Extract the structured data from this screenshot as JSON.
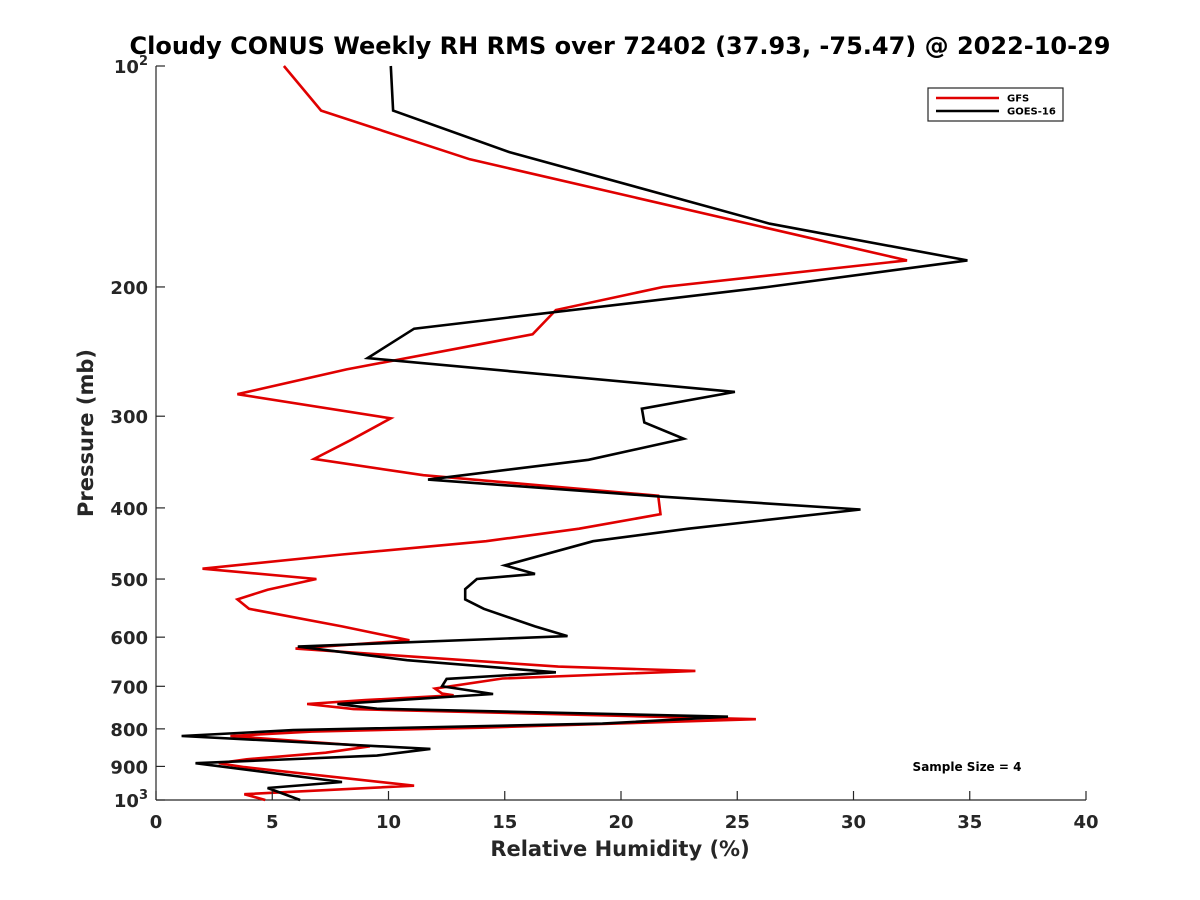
{
  "chart_data": {
    "type": "line",
    "title": "Cloudy CONUS Weekly RH RMS over 72402 (37.93, -75.47) @ 2022-10-29",
    "xlabel": "Relative Humidity (%)",
    "ylabel": "Pressure (mb)",
    "xlim": [
      0,
      40
    ],
    "ylim": [
      100,
      1000
    ],
    "yscale": "log",
    "y_reversed": true,
    "grid": false,
    "legend_position": "top-right",
    "x_ticks": [
      "0",
      "5",
      "10",
      "15",
      "20",
      "25",
      "30",
      "35",
      "40"
    ],
    "y_ticks": [
      {
        "value": 100,
        "label": "10",
        "exp": "2"
      },
      {
        "value": 200,
        "label": "200",
        "exp": ""
      },
      {
        "value": 300,
        "label": "300",
        "exp": ""
      },
      {
        "value": 400,
        "label": "400",
        "exp": ""
      },
      {
        "value": 500,
        "label": "500",
        "exp": ""
      },
      {
        "value": 600,
        "label": "600",
        "exp": ""
      },
      {
        "value": 700,
        "label": "700",
        "exp": ""
      },
      {
        "value": 800,
        "label": "800",
        "exp": ""
      },
      {
        "value": 900,
        "label": "900",
        "exp": ""
      },
      {
        "value": 1000,
        "label": "10",
        "exp": "3"
      }
    ],
    "annotation": "Sample Size = 4",
    "series": [
      {
        "name": "GFS",
        "color": "#e00000",
        "points": [
          [
            5.5,
            100
          ],
          [
            7.1,
            115
          ],
          [
            13.5,
            134
          ],
          [
            32.3,
            184
          ],
          [
            21.8,
            200
          ],
          [
            17.2,
            215
          ],
          [
            16.2,
            232
          ],
          [
            8.2,
            259
          ],
          [
            3.5,
            280
          ],
          [
            10.1,
            302
          ],
          [
            8.4,
            323
          ],
          [
            6.8,
            343
          ],
          [
            11.5,
            361
          ],
          [
            21.6,
            385
          ],
          [
            21.7,
            408
          ],
          [
            18.2,
            427
          ],
          [
            14.2,
            444
          ],
          [
            8.0,
            463
          ],
          [
            2.0,
            484
          ],
          [
            6.9,
            500
          ],
          [
            4.8,
            517
          ],
          [
            3.5,
            533
          ],
          [
            4.0,
            549
          ],
          [
            8.0,
            580
          ],
          [
            10.9,
            606
          ],
          [
            6.0,
            622
          ],
          [
            17.3,
            658
          ],
          [
            23.2,
            667
          ],
          [
            14.9,
            683
          ],
          [
            12.0,
            705
          ],
          [
            12.3,
            716
          ],
          [
            12.8,
            720
          ],
          [
            9.0,
            731
          ],
          [
            6.5,
            740
          ],
          [
            8.5,
            752
          ],
          [
            25.8,
            776
          ],
          [
            14.0,
            797
          ],
          [
            6.7,
            807
          ],
          [
            3.2,
            818
          ],
          [
            9.2,
            845
          ],
          [
            7.3,
            862
          ],
          [
            3.9,
            880
          ],
          [
            2.7,
            891
          ],
          [
            3.8,
            902
          ],
          [
            11.1,
            956
          ],
          [
            3.8,
            982
          ],
          [
            4.7,
            1000
          ]
        ]
      },
      {
        "name": "GOES-16",
        "color": "#000000",
        "points": [
          [
            10.1,
            100
          ],
          [
            10.2,
            115
          ],
          [
            15.2,
            131
          ],
          [
            26.4,
            164
          ],
          [
            34.9,
            184
          ],
          [
            26.3,
            200
          ],
          [
            11.1,
            228
          ],
          [
            9.1,
            250
          ],
          [
            24.9,
            278
          ],
          [
            20.9,
            293
          ],
          [
            21.0,
            306
          ],
          [
            22.7,
            322
          ],
          [
            18.6,
            344
          ],
          [
            11.7,
            366
          ],
          [
            21.7,
            386
          ],
          [
            30.3,
            402
          ],
          [
            22.9,
            427
          ],
          [
            18.8,
            444
          ],
          [
            15.0,
            479
          ],
          [
            16.3,
            492
          ],
          [
            13.8,
            500
          ],
          [
            13.3,
            516
          ],
          [
            13.3,
            533
          ],
          [
            14.1,
            549
          ],
          [
            16.3,
            580
          ],
          [
            17.7,
            598
          ],
          [
            6.1,
            618
          ],
          [
            10.8,
            645
          ],
          [
            17.2,
            670
          ],
          [
            12.5,
            684
          ],
          [
            12.3,
            700
          ],
          [
            14.5,
            717
          ],
          [
            7.8,
            740
          ],
          [
            9.5,
            751
          ],
          [
            24.6,
            770
          ],
          [
            19.2,
            787
          ],
          [
            5.9,
            803
          ],
          [
            1.1,
            818
          ],
          [
            11.8,
            852
          ],
          [
            9.5,
            870
          ],
          [
            1.7,
            891
          ],
          [
            8.0,
            945
          ],
          [
            4.8,
            963
          ],
          [
            6.2,
            1000
          ]
        ]
      }
    ]
  }
}
